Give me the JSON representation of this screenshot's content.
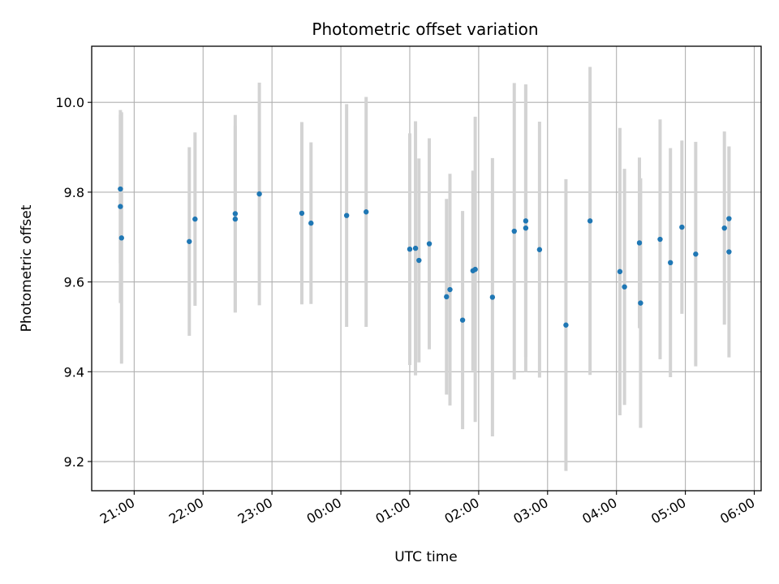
{
  "chart_data": {
    "type": "scatter",
    "title": "Photometric offset variation",
    "xlabel": "UTC time",
    "ylabel": "Photometric offset",
    "x_ticks": [
      "21:00",
      "22:00",
      "23:00",
      "00:00",
      "01:00",
      "02:00",
      "03:00",
      "04:00",
      "05:00",
      "06:00"
    ],
    "y_ticks": [
      "9.2",
      "9.4",
      "9.6",
      "9.8",
      "10.0"
    ],
    "y_tick_values": [
      9.2,
      9.4,
      9.6,
      9.8,
      10.0
    ],
    "xlim": [
      "20:23",
      "06:06"
    ],
    "ylim": [
      9.135,
      10.125
    ],
    "grid": true,
    "colors": {
      "marker": "#1f77b4",
      "errorbar": "#d3d3d3",
      "grid": "#b0b0b0"
    },
    "series": [
      {
        "points": [
          {
            "x": "20:48",
            "y": 9.807,
            "err": 0.165
          },
          {
            "x": "20:48",
            "y": 9.768,
            "err": 0.215
          },
          {
            "x": "20:49",
            "y": 9.698,
            "err": 0.28
          },
          {
            "x": "21:48",
            "y": 9.69,
            "err": 0.21
          },
          {
            "x": "21:53",
            "y": 9.74,
            "err": 0.193
          },
          {
            "x": "22:28",
            "y": 9.752,
            "err": 0.22
          },
          {
            "x": "22:28",
            "y": 9.74,
            "err": 0.208
          },
          {
            "x": "22:49",
            "y": 9.796,
            "err": 0.248
          },
          {
            "x": "23:26",
            "y": 9.753,
            "err": 0.203
          },
          {
            "x": "23:34",
            "y": 9.731,
            "err": 0.18
          },
          {
            "x": "00:05",
            "y": 9.748,
            "err": 0.248
          },
          {
            "x": "00:22",
            "y": 9.756,
            "err": 0.256
          },
          {
            "x": "01:00",
            "y": 9.673,
            "err": 0.258
          },
          {
            "x": "01:05",
            "y": 9.675,
            "err": 0.283
          },
          {
            "x": "01:08",
            "y": 9.648,
            "err": 0.227
          },
          {
            "x": "01:17",
            "y": 9.685,
            "err": 0.235
          },
          {
            "x": "01:32",
            "y": 9.567,
            "err": 0.218
          },
          {
            "x": "01:35",
            "y": 9.583,
            "err": 0.258
          },
          {
            "x": "01:46",
            "y": 9.515,
            "err": 0.243
          },
          {
            "x": "01:55",
            "y": 9.625,
            "err": 0.223
          },
          {
            "x": "01:57",
            "y": 9.628,
            "err": 0.34
          },
          {
            "x": "02:12",
            "y": 9.566,
            "err": 0.31
          },
          {
            "x": "02:31",
            "y": 9.713,
            "err": 0.33
          },
          {
            "x": "02:41",
            "y": 9.736,
            "err": 0.303
          },
          {
            "x": "02:41",
            "y": 9.72,
            "err": 0.32
          },
          {
            "x": "02:53",
            "y": 9.672,
            "err": 0.285
          },
          {
            "x": "03:16",
            "y": 9.504,
            "err": 0.325
          },
          {
            "x": "03:37",
            "y": 9.736,
            "err": 0.343
          },
          {
            "x": "04:03",
            "y": 9.623,
            "err": 0.32
          },
          {
            "x": "04:07",
            "y": 9.589,
            "err": 0.263
          },
          {
            "x": "04:20",
            "y": 9.687,
            "err": 0.19
          },
          {
            "x": "04:21",
            "y": 9.553,
            "err": 0.278
          },
          {
            "x": "04:38",
            "y": 9.695,
            "err": 0.267
          },
          {
            "x": "04:47",
            "y": 9.643,
            "err": 0.255
          },
          {
            "x": "04:57",
            "y": 9.722,
            "err": 0.193
          },
          {
            "x": "05:09",
            "y": 9.662,
            "err": 0.25
          },
          {
            "x": "05:34",
            "y": 9.72,
            "err": 0.215
          },
          {
            "x": "05:38",
            "y": 9.741,
            "err": 0.16
          },
          {
            "x": "05:38",
            "y": 9.667,
            "err": 0.235
          }
        ]
      }
    ]
  }
}
